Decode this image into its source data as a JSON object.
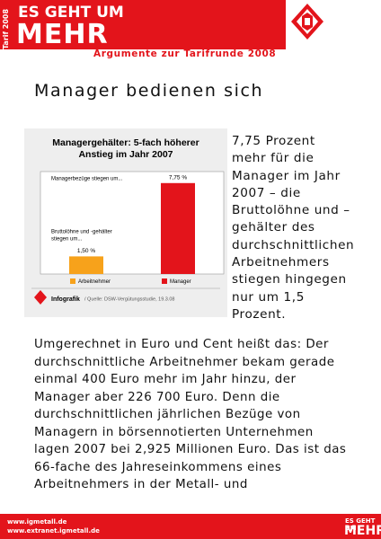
{
  "header": {
    "tag": "Tarif 2008",
    "slogan_top": "ES GEHT UM",
    "slogan_main": "MEHR",
    "subtitle": "Argumente zur Tarifrunde 2008"
  },
  "article": {
    "headline": "Manager bedienen sich",
    "side_lines": [
      "7,75 Prozent",
      "mehr für die",
      "Manager im Jahr",
      "2007 – die",
      "Bruttolöhne und –",
      "gehälter des",
      "durchschnittlichen",
      "Arbeitnehmers",
      "stiegen hingegen",
      "nur um 1,5",
      "Prozent."
    ],
    "body_lines": [
      "Umgerechnet in Euro und Cent heißt das: Der",
      "durchschnittliche Arbeitnehmer bekam  gerade",
      "einmal 400 Euro mehr im Jahr hinzu, der",
      "Manager aber 226 700 Euro. Denn die",
      "durchschnittlichen jährlichen Bezüge von",
      "Managern in börsennotierten Unternehmen",
      "lagen 2007 bei 2,925 Millionen Euro. Das ist das",
      "66-fache des Jahreseinkommens eines",
      "Arbeitnehmers in der Metall- und"
    ]
  },
  "chart": {
    "type": "bar",
    "title_lines": [
      "Managergehälter: 5-fach höherer",
      "Anstieg im Jahr 2007"
    ],
    "categories": [
      "Arbeitnehmer",
      "Manager"
    ],
    "values": [
      1.5,
      7.75
    ],
    "value_labels": [
      "1,50 %",
      "7,75 %"
    ],
    "colors": [
      "#f7a21b",
      "#e3141b"
    ],
    "ylim": [
      0,
      8.5
    ],
    "annotations": [
      "Managerbezüge stiegen um...",
      "Bruttolöhne und -gehälter",
      "stiegen um..."
    ],
    "footer_label": "Infografik",
    "source": "/ Quelle: DSW-Vergütungsstudie, 19.3.08"
  },
  "footer": {
    "links": [
      "www.igmetall.de",
      "www.extranet.igmetall.de"
    ],
    "slogan_top": "ES GEHT UM",
    "slogan_main": "MEHR"
  }
}
